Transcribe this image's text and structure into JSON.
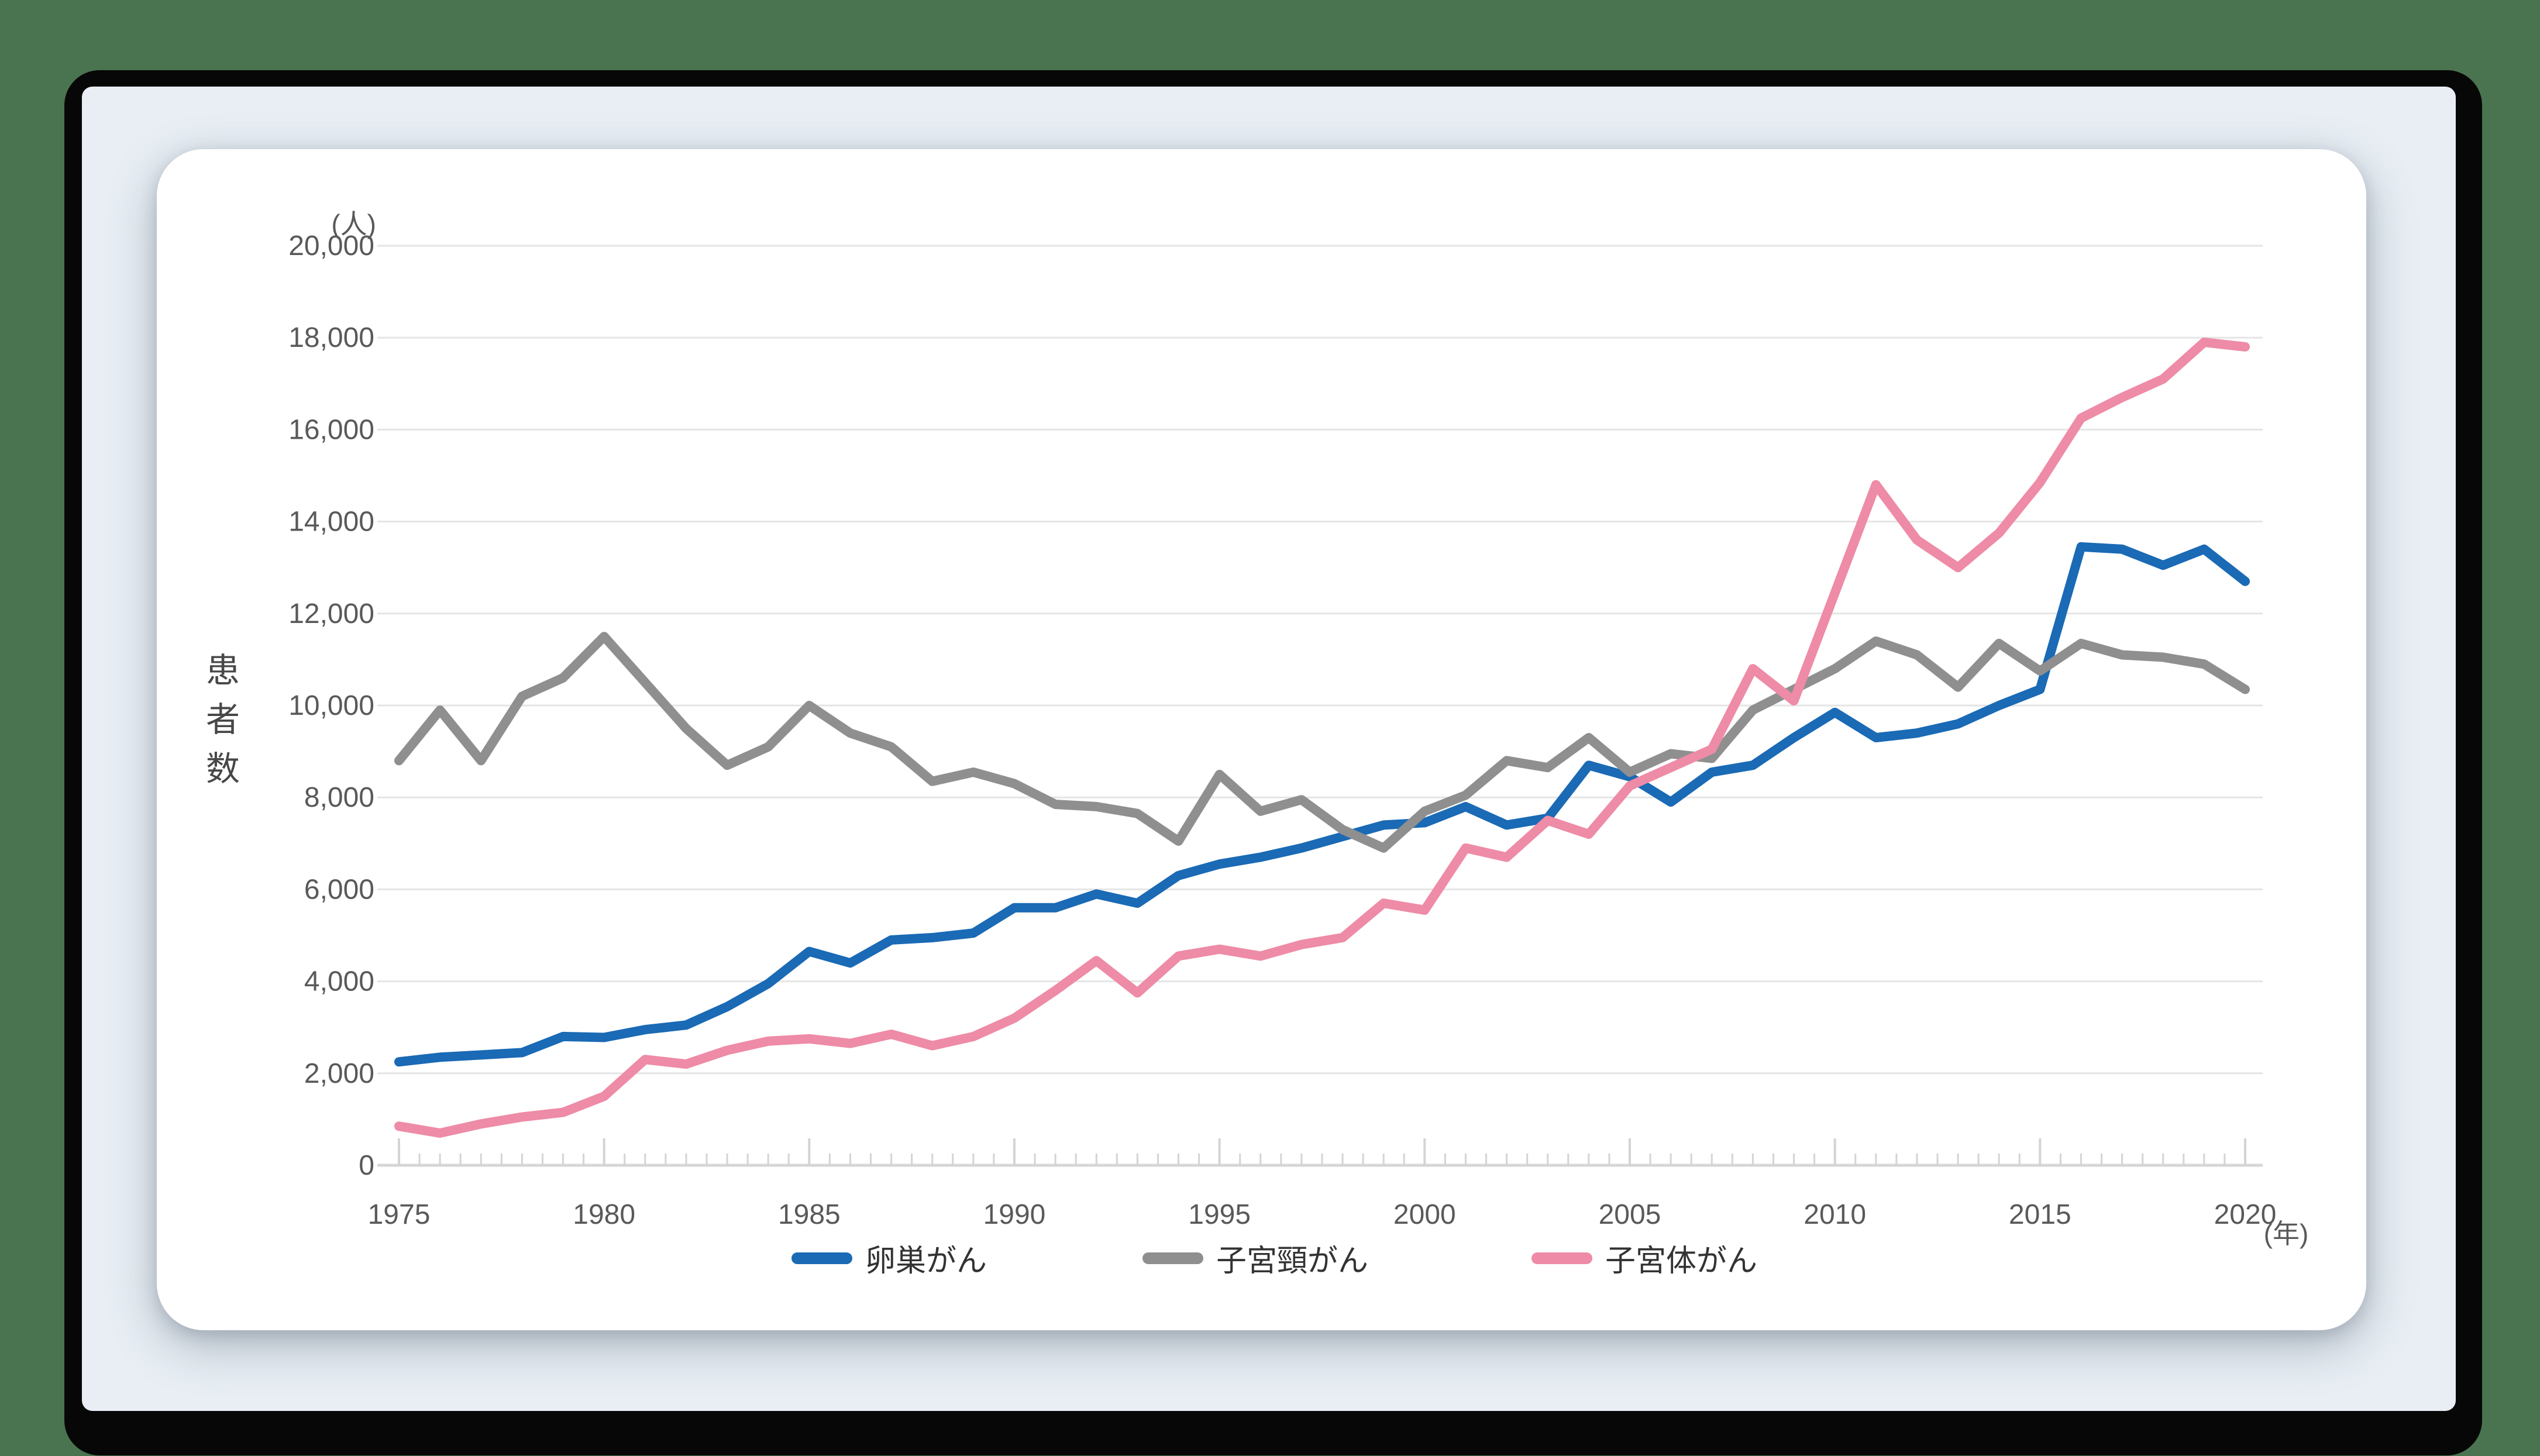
{
  "page": {
    "y_unit_label": "(人)",
    "y_axis_title": "患者数",
    "x_unit_label": "(年)"
  },
  "chart_data": {
    "type": "line",
    "title": "",
    "xlabel": "(年)",
    "ylabel": "患者数 (人)",
    "grid": "horizontal",
    "legend_position": "bottom",
    "ylim": [
      0,
      20000
    ],
    "ytick_step": 2000,
    "xticks": [
      1975,
      1980,
      1985,
      1990,
      1995,
      2000,
      2005,
      2010,
      2015,
      2020
    ],
    "x": [
      1975,
      1976,
      1977,
      1978,
      1979,
      1980,
      1981,
      1982,
      1983,
      1984,
      1985,
      1986,
      1987,
      1988,
      1989,
      1990,
      1991,
      1992,
      1993,
      1994,
      1995,
      1996,
      1997,
      1998,
      1999,
      2000,
      2001,
      2002,
      2003,
      2004,
      2005,
      2006,
      2007,
      2008,
      2009,
      2010,
      2011,
      2012,
      2013,
      2014,
      2015,
      2016,
      2017,
      2018,
      2019,
      2020
    ],
    "series": [
      {
        "name": "卵巣がん",
        "color": "#1a6ab5",
        "values": [
          2250,
          2350,
          2400,
          2450,
          2800,
          2780,
          2950,
          3050,
          3450,
          3950,
          4650,
          4400,
          4900,
          4950,
          5050,
          5600,
          5600,
          5900,
          5700,
          6300,
          6550,
          6700,
          6900,
          7150,
          7400,
          7450,
          7800,
          7400,
          7550,
          8700,
          8450,
          7900,
          8550,
          8700,
          9300,
          9850,
          9300,
          9400,
          9600,
          10000,
          10350,
          13450,
          13400,
          13050,
          13400,
          12700
        ]
      },
      {
        "name": "子宮頸がん",
        "color": "#8f8f8f",
        "values": [
          8800,
          9900,
          8800,
          10200,
          10600,
          11500,
          10500,
          9500,
          8700,
          9100,
          10000,
          9400,
          9100,
          8350,
          8550,
          8300,
          7850,
          7800,
          7650,
          7050,
          8500,
          7700,
          7950,
          7300,
          6900,
          7700,
          8050,
          8800,
          8650,
          9300,
          8550,
          8950,
          8850,
          9900,
          10350,
          10800,
          11400,
          11100,
          10400,
          11350,
          10750,
          11350,
          11100,
          11050,
          10900,
          10350
        ]
      },
      {
        "name": "子宮体がん",
        "color": "#ee8ba6",
        "values": [
          850,
          700,
          900,
          1050,
          1150,
          1500,
          2300,
          2200,
          2500,
          2700,
          2750,
          2650,
          2850,
          2600,
          2800,
          3200,
          3800,
          4450,
          3750,
          4550,
          4700,
          4550,
          4800,
          4950,
          5700,
          5550,
          6900,
          6700,
          7500,
          7200,
          8250,
          8650,
          9050,
          10800,
          10100,
          12450,
          14800,
          13600,
          13000,
          13750,
          14850,
          16250,
          16700,
          17100,
          17900,
          17800
        ]
      }
    ]
  }
}
